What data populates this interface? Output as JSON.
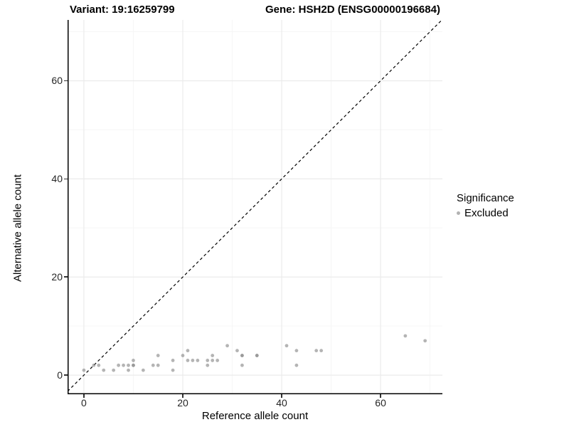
{
  "titles": {
    "left": "Variant: 19:16259799",
    "right": "Gene: HSH2D (ENSG00000196684)"
  },
  "legend": {
    "title": "Significance",
    "items": [
      {
        "label": "Excluded",
        "color": "#b2b2b2"
      }
    ]
  },
  "colors": {
    "point": "#8c8c8c",
    "point_opacity": 0.65,
    "grid_major": "#ebebeb",
    "grid_minor": "#f6f6f6",
    "axis_line": "#000000",
    "identity_line": "#000000",
    "tick_text": "#262626"
  },
  "chart_data": {
    "type": "scatter",
    "title": "Variant: 19:16259799 | Gene: HSH2D (ENSG00000196684)",
    "xlabel": "Reference allele count",
    "ylabel": "Alternative allele count",
    "xlim": [
      -3.3,
      72.5
    ],
    "ylim": [
      -3.9,
      72.4
    ],
    "x_ticks": [
      0,
      20,
      40,
      60
    ],
    "y_ticks": [
      0,
      20,
      40,
      60
    ],
    "x_minor_ticks": [
      10,
      30,
      50,
      70
    ],
    "y_minor_ticks": [
      10,
      30,
      50,
      70
    ],
    "grid": true,
    "legend_position": "right",
    "identity_line": {
      "style": "dashed",
      "slope": 1,
      "intercept": 0
    },
    "series": [
      {
        "name": "Excluded",
        "points": [
          [
            0,
            1
          ],
          [
            2,
            2
          ],
          [
            3,
            2
          ],
          [
            4,
            1
          ],
          [
            6,
            1
          ],
          [
            7,
            2
          ],
          [
            8,
            2
          ],
          [
            9,
            1
          ],
          [
            9,
            2
          ],
          [
            10,
            2
          ],
          [
            10,
            2
          ],
          [
            10,
            3
          ],
          [
            12,
            1
          ],
          [
            14,
            2
          ],
          [
            15,
            2
          ],
          [
            15,
            4
          ],
          [
            18,
            1
          ],
          [
            18,
            3
          ],
          [
            20,
            4
          ],
          [
            21,
            3
          ],
          [
            21,
            5
          ],
          [
            22,
            3
          ],
          [
            23,
            3
          ],
          [
            25,
            2
          ],
          [
            25,
            3
          ],
          [
            26,
            3
          ],
          [
            26,
            4
          ],
          [
            27,
            3
          ],
          [
            29,
            6
          ],
          [
            31,
            5
          ],
          [
            32,
            2
          ],
          [
            32,
            4
          ],
          [
            32,
            4
          ],
          [
            35,
            4
          ],
          [
            35,
            4
          ],
          [
            41,
            6
          ],
          [
            43,
            2
          ],
          [
            43,
            5
          ],
          [
            47,
            5
          ],
          [
            48,
            5
          ],
          [
            65,
            8
          ],
          [
            69,
            7
          ]
        ]
      }
    ]
  }
}
